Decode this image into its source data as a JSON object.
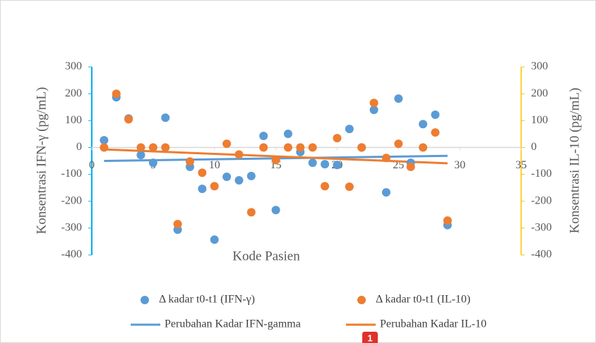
{
  "chart_data": {
    "type": "scatter",
    "x_label": "Kode Pasien",
    "y_label": "Konsentrasi IFN-γ (pg/mL)",
    "y2_label": "Konsentrasi IL-10 (pg/mL)",
    "xlim": [
      0,
      35
    ],
    "xticks": [
      0,
      5,
      10,
      15,
      20,
      25,
      30,
      35
    ],
    "ylim": [
      -400,
      300
    ],
    "yticks": [
      300,
      200,
      100,
      0,
      -100,
      -200,
      -300,
      -400
    ],
    "y2lim": [
      -400,
      300
    ],
    "y2ticks": [
      300,
      200,
      100,
      0,
      -100,
      -200,
      -300,
      -400
    ],
    "y_axis_color": "#00b0f0",
    "y2_axis_color": "#ffc000",
    "x": [
      1,
      2,
      3,
      4,
      5,
      6,
      7,
      8,
      9,
      10,
      11,
      12,
      13,
      14,
      15,
      16,
      17,
      18,
      19,
      20,
      21,
      22,
      23,
      24,
      25,
      26,
      27,
      28,
      29
    ],
    "series": [
      {
        "name": "Δ kadar t0-t1 (IFN-γ)",
        "color": "#5b9bd5",
        "values": [
          27,
          187,
          108,
          -28,
          -57,
          111,
          -306,
          -72,
          -154,
          -343,
          -109,
          -122,
          -106,
          43,
          -233,
          51,
          -17,
          -57,
          -62,
          -65,
          69,
          0,
          140,
          -167,
          182,
          -57,
          87,
          122,
          -289
        ]
      },
      {
        "name": "Δ kadar t0-t1 (IL-10)",
        "color": "#ed7d31",
        "axis": "y2",
        "values": [
          0,
          200,
          105,
          0,
          0,
          0,
          -285,
          -52,
          -94,
          -144,
          14,
          -26,
          -241,
          0,
          -47,
          0,
          0,
          0,
          -144,
          35,
          -146,
          0,
          166,
          -39,
          14,
          -72,
          0,
          56,
          -272
        ]
      }
    ],
    "trendlines": [
      {
        "name": "Perubahan Kadar IFN-gamma",
        "color": "#5b9bd5",
        "x": [
          1,
          29
        ],
        "values": [
          -50,
          -31
        ]
      },
      {
        "name": "Perubahan Kadar IL-10",
        "color": "#ed7d31",
        "axis": "y2",
        "x": [
          1,
          29
        ],
        "values": [
          -7,
          -59
        ]
      }
    ]
  },
  "badge": "1"
}
